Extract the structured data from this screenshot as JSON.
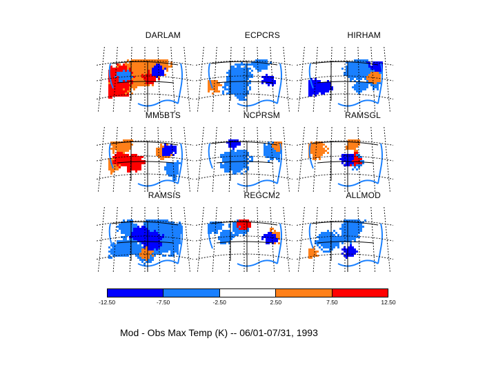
{
  "chart_data": {
    "type": "heatmap",
    "title": "Mod - Obs Max Temp (K) -- 06/01-07/31, 1993",
    "panels": [
      {
        "name": "DARLAM",
        "dominant": [
          [
            "orange",
            0.55
          ],
          [
            "red",
            0.3
          ],
          [
            "lightblue",
            0.05
          ],
          [
            "blue",
            0.03
          ]
        ]
      },
      {
        "name": "ECPCRS",
        "dominant": [
          [
            "lightblue",
            0.3
          ],
          [
            "orange",
            0.06
          ],
          [
            "blue",
            0.01
          ]
        ]
      },
      {
        "name": "HIRHAM",
        "dominant": [
          [
            "lightblue",
            0.35
          ],
          [
            "blue",
            0.25
          ],
          [
            "orange",
            0.02
          ]
        ]
      },
      {
        "name": "MM5BTS",
        "dominant": [
          [
            "orange",
            0.25
          ],
          [
            "red",
            0.15
          ],
          [
            "lightblue",
            0.2
          ],
          [
            "blue",
            0.06
          ]
        ]
      },
      {
        "name": "NCPRSM",
        "dominant": [
          [
            "lightblue",
            0.3
          ],
          [
            "orange",
            0.04
          ],
          [
            "blue",
            0.01
          ]
        ]
      },
      {
        "name": "RAMSGL",
        "dominant": [
          [
            "orange",
            0.15
          ],
          [
            "lightblue",
            0.12
          ],
          [
            "red",
            0.02
          ],
          [
            "blue",
            0.02
          ]
        ]
      },
      {
        "name": "RAMSIS",
        "dominant": [
          [
            "lightblue",
            0.55
          ],
          [
            "blue",
            0.2
          ],
          [
            "orange",
            0.01
          ]
        ]
      },
      {
        "name": "REGCM2",
        "dominant": [
          [
            "lightblue",
            0.25
          ],
          [
            "orange",
            0.06
          ],
          [
            "blue",
            0.03
          ],
          [
            "red",
            0.01
          ]
        ]
      },
      {
        "name": "ALLMOD",
        "dominant": [
          [
            "lightblue",
            0.25
          ],
          [
            "blue",
            0.02
          ],
          [
            "orange",
            0.02
          ]
        ]
      }
    ],
    "colorbar": {
      "ticks": [
        "-12.50",
        "-7.50",
        "-2.50",
        "2.50",
        "7.50",
        "12.50"
      ],
      "bins": [
        {
          "range": [
            -12.5,
            -7.5
          ],
          "color": "#0000ff"
        },
        {
          "range": [
            -7.5,
            -2.5
          ],
          "color": "#1a80ff"
        },
        {
          "range": [
            -2.5,
            2.5
          ],
          "color": "#ffffff"
        },
        {
          "range": [
            2.5,
            7.5
          ],
          "color": "#ff8019"
        },
        {
          "range": [
            7.5,
            12.5
          ],
          "color": "#ff0000"
        }
      ]
    }
  },
  "colors": {
    "blue": "#0000ff",
    "lightblue": "#1a80ff",
    "white": "#ffffff",
    "orange": "#ff8019",
    "red": "#ff0000"
  }
}
